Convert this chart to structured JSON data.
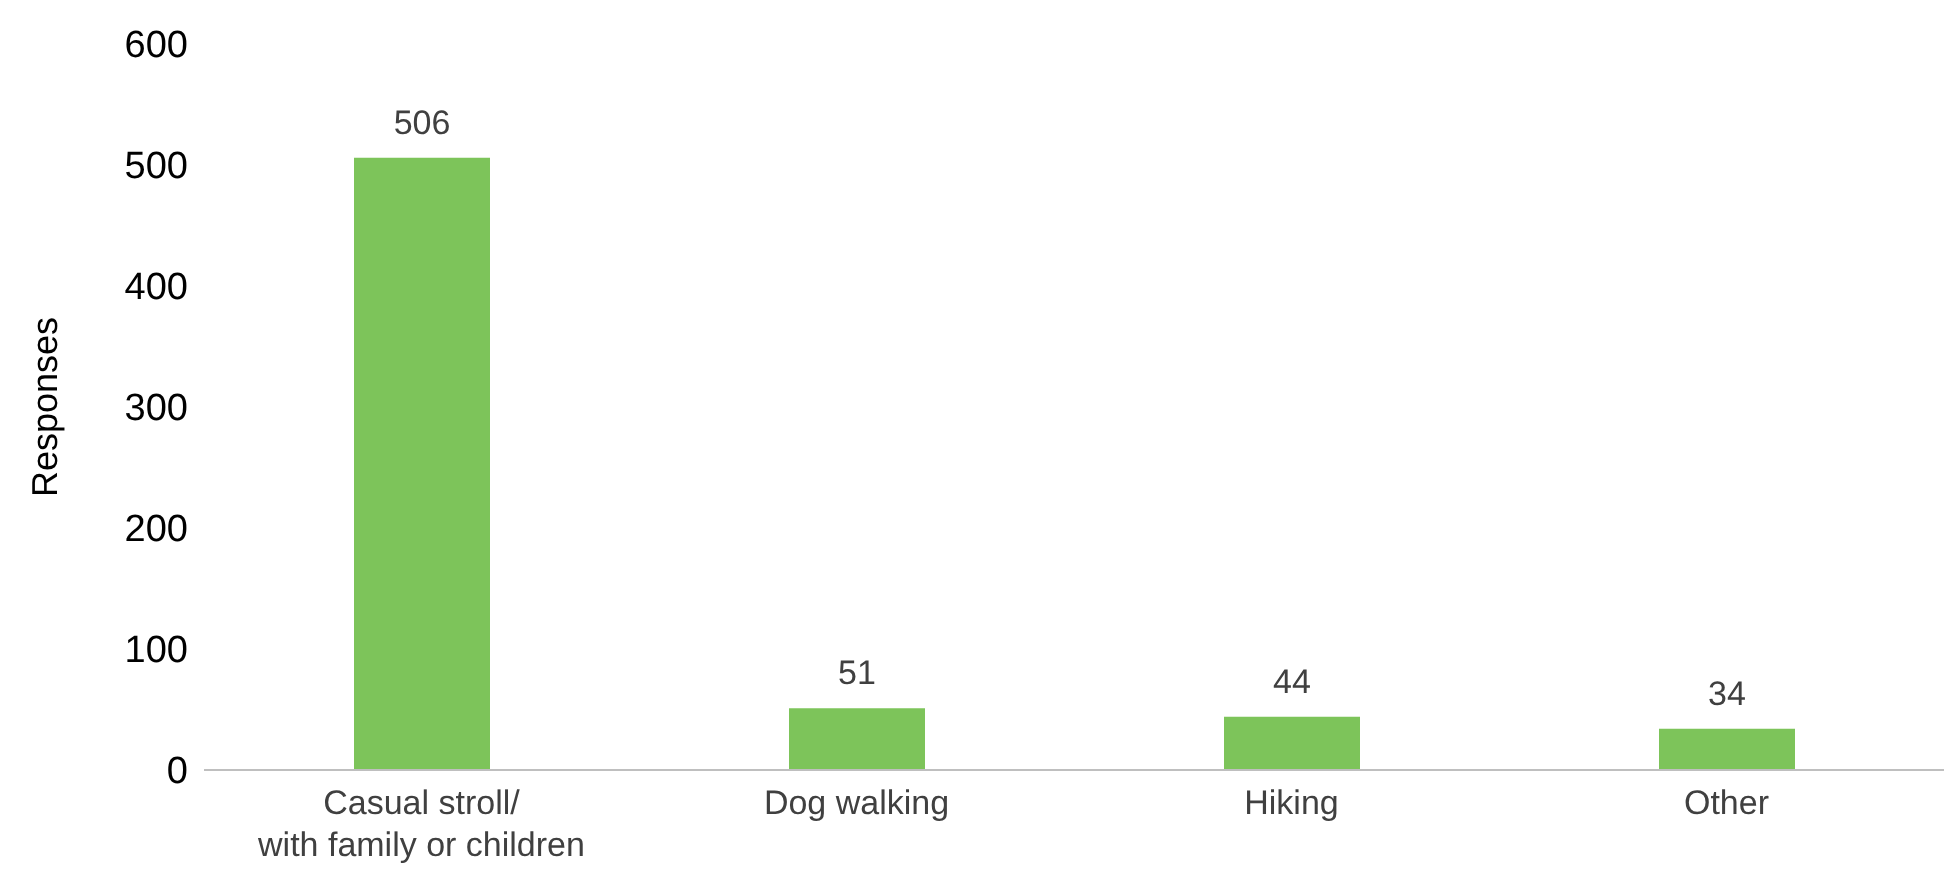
{
  "chart_data": {
    "type": "bar",
    "ylabel": "Responses",
    "categories": [
      "Casual stroll/\nwith family or children",
      "Dog walking",
      "Hiking",
      "Other"
    ],
    "values": [
      506,
      51,
      44,
      34
    ],
    "color": "#7dc45a",
    "ylim": [
      0,
      600
    ],
    "yticks": [
      0,
      100,
      200,
      300,
      400,
      500,
      600
    ],
    "grid": false,
    "data_labels": true
  }
}
